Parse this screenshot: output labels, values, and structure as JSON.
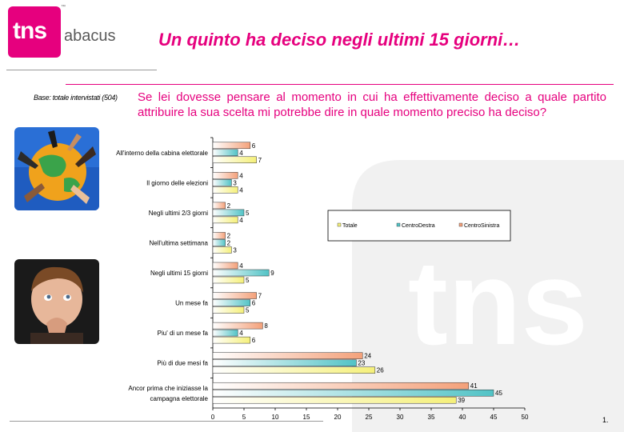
{
  "brand": {
    "logo_text": "tns",
    "logo_suffix": "abacus",
    "logo_tm": "™",
    "accent": "#e6007e"
  },
  "headline": "Un quinto ha deciso negli ultimi 15 giorni…",
  "base_note": "Base: totale intervistati (504)",
  "question": "Se lei dovesse pensare al momento in cui ha effettivamente deciso a quale partito attribuire la sua scelta mi potrebbe dire in quale momento preciso ha deciso?",
  "page_number": "1.",
  "images": {
    "photo1": "globe-with-hands",
    "photo2": "thinking-child"
  },
  "chart_data": {
    "type": "bar",
    "orientation": "horizontal",
    "categories": [
      "All'interno della cabina elettorale",
      "Il giorno delle elezioni",
      "Negli ultimi 2/3 giorni",
      "Nell'ultima settimana",
      "Negli ultimi 15 giorni",
      "Un mese fa",
      "Piu' di un mese fa",
      "Più di due mesi fa",
      "Ancor prima che iniziasse la campagna elettorale"
    ],
    "series": [
      {
        "name": "CentroSinistra",
        "color": "#f4a17a",
        "values": [
          6,
          4,
          2,
          2,
          4,
          7,
          8,
          24,
          41
        ]
      },
      {
        "name": "CentroDestra",
        "color": "#52c3c6",
        "values": [
          4,
          3,
          5,
          2,
          9,
          6,
          4,
          23,
          45
        ]
      },
      {
        "name": "Totale",
        "color": "#f5f07a",
        "values": [
          7,
          4,
          4,
          3,
          5,
          5,
          6,
          26,
          39
        ]
      }
    ],
    "legend_order": [
      "Totale",
      "CentroDestra",
      "CentroSinistra"
    ],
    "xlim": [
      0,
      50
    ],
    "xticks": [
      0,
      5,
      10,
      15,
      20,
      25,
      30,
      35,
      40,
      45,
      50
    ],
    "grid": false,
    "legend_position": "right"
  }
}
